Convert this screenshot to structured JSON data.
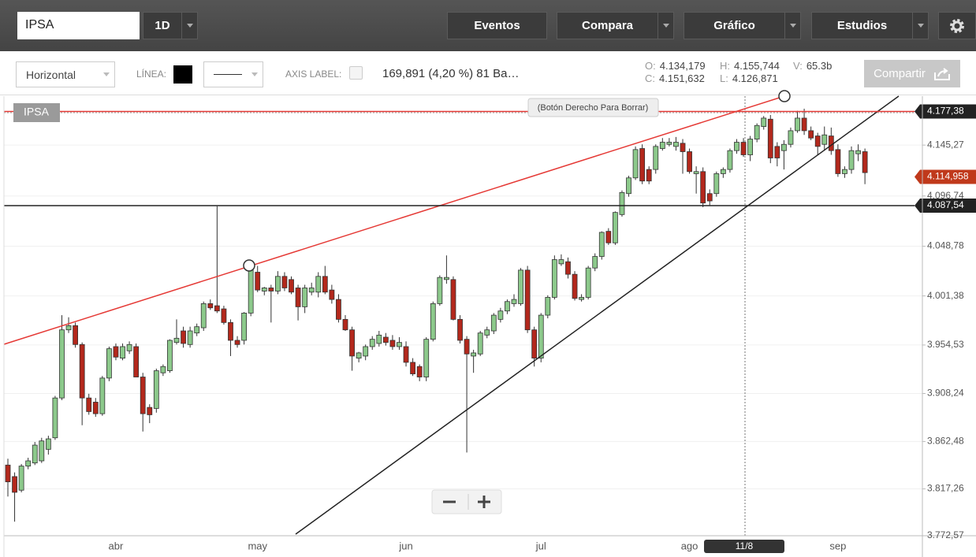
{
  "toolbar": {
    "symbol": "IPSA",
    "interval": "1D",
    "buttons": [
      "Eventos",
      "Compara",
      "Gráfico",
      "Estudios"
    ]
  },
  "drawing_bar": {
    "orientation": "Horizontal",
    "line_label": "LÍNEA:",
    "axis_label": "AXIS LABEL:",
    "change": "169,891 (4,20 %) 81 Ba…",
    "share": "Compartir"
  },
  "quote": [
    {
      "label": "O:",
      "value": "4.134,179"
    },
    {
      "label": "H:",
      "value": "4.155,744"
    },
    {
      "label": "V:",
      "value": "65.3b"
    },
    {
      "label": "C:",
      "value": "4.151,632"
    },
    {
      "label": "L:",
      "value": "4.126,871"
    }
  ],
  "chart_data": {
    "type": "candlestick",
    "title": "IPSA",
    "hint": "(Botón Derecho Para Borrar)",
    "crosshair_label": "11/8",
    "up_color": "#8cc98b",
    "down_color": "#b3281c",
    "ylim": [
      3772.57,
      4192
    ],
    "yticks": [
      {
        "value": 3772.57,
        "label": "3.772,57"
      },
      {
        "value": 3817.26,
        "label": "3.817,26"
      },
      {
        "value": 3862.48,
        "label": "3.862,48"
      },
      {
        "value": 3908.24,
        "label": "3.908,24"
      },
      {
        "value": 3954.53,
        "label": "3.954,53"
      },
      {
        "value": 4001.38,
        "label": "4.001,38"
      },
      {
        "value": 4048.78,
        "label": "4.048,78"
      },
      {
        "value": 4096.74,
        "label": "4.096,74"
      },
      {
        "value": 4145.27,
        "label": "4.145,27"
      }
    ],
    "grid": true,
    "hlines": [
      {
        "value": 4177.38,
        "label": "4.177,38",
        "color": "#e53935"
      },
      {
        "value": 4087.54,
        "label": "4.087,54",
        "color": "#222222"
      }
    ],
    "last_price": {
      "value": 4114.958,
      "label": "4.114,958",
      "color": "#c0391b"
    },
    "categories": [
      null,
      null,
      null,
      null,
      null,
      null,
      null,
      null,
      null,
      null,
      null,
      null,
      null,
      null,
      null,
      null,
      "abr",
      null,
      null,
      null,
      null,
      null,
      null,
      null,
      null,
      null,
      null,
      null,
      null,
      null,
      null,
      null,
      null,
      null,
      null,
      null,
      null,
      "may",
      null,
      null,
      null,
      null,
      null,
      null,
      null,
      null,
      null,
      null,
      null,
      null,
      null,
      null,
      null,
      null,
      null,
      null,
      null,
      null,
      null,
      "jun",
      null,
      null,
      null,
      null,
      null,
      null,
      null,
      null,
      null,
      null,
      null,
      null,
      null,
      null,
      null,
      null,
      null,
      null,
      null,
      "jul",
      null,
      null,
      null,
      null,
      null,
      null,
      null,
      null,
      null,
      null,
      null,
      null,
      null,
      null,
      null,
      null,
      null,
      null,
      null,
      null,
      null,
      "ago",
      null,
      null,
      null,
      null,
      null,
      null,
      null,
      null,
      null,
      null,
      null,
      null,
      null,
      null,
      null,
      null,
      null,
      null,
      null,
      null,
      null,
      "sep",
      null,
      null,
      null,
      null
    ],
    "open": [
      3840,
      3829,
      3816,
      3839,
      3842,
      3844,
      3855,
      3866,
      3904,
      3969,
      3973,
      3955,
      3904,
      3900,
      3889,
      3923,
      3953,
      3942,
      3949,
      3953,
      3924,
      3895,
      3894,
      3928,
      3930,
      3957,
      3968,
      3955,
      3966,
      3971,
      3994,
      3992,
      3989,
      3976,
      3959,
      3959,
      3985,
      4024,
      4006,
      4009,
      4006,
      4020,
      4017,
      4009,
      3991,
      4005,
      4005,
      4020,
      4007,
      3998,
      3979,
      3969,
      3942,
      3944,
      3953,
      3956,
      3962,
      3959,
      3953,
      3953,
      3938,
      3934,
      3924,
      3960,
      3994,
      4017,
      4017,
      3979,
      3960,
      3944,
      3946,
      3964,
      3968,
      3979,
      3987,
      3994,
      3994,
      4026,
      3969,
      3942,
      3983,
      4000,
      4032,
      4034,
      4022,
      3998,
      4000,
      4028,
      4039,
      4063,
      4052,
      4079,
      4099,
      4114,
      4142,
      4122,
      4122,
      4142,
      4146,
      4144,
      4147,
      4139,
      4118,
      4120,
      4099,
      4099,
      4118,
      4122,
      4140,
      4148,
      4136,
      4151,
      4163,
      4170,
      4144,
      4140,
      4146,
      4159,
      4171,
      4159,
      4154,
      4146,
      4154,
      4141,
      4118,
      4122,
      4137,
      4139
    ],
    "high": [
      3846,
      3833,
      3841,
      3847,
      3862,
      3866,
      3868,
      3906,
      3983,
      3981,
      3976,
      3957,
      3908,
      3904,
      3925,
      3953,
      3956,
      3956,
      3958,
      3956,
      3928,
      3898,
      3932,
      3936,
      3960,
      3979,
      3972,
      3972,
      3975,
      3996,
      3998,
      4087,
      3992,
      3979,
      3963,
      3986,
      4030,
      4030,
      4010,
      4012,
      4025,
      4024,
      4020,
      4012,
      4012,
      4014,
      4024,
      4030,
      4012,
      4003,
      3983,
      3972,
      3948,
      3955,
      3963,
      3968,
      3966,
      3964,
      3962,
      3958,
      3942,
      3936,
      3962,
      3996,
      4021,
      4040,
      4020,
      3983,
      3963,
      3950,
      3968,
      3972,
      3985,
      3990,
      3998,
      4003,
      4028,
      4030,
      3972,
      3985,
      4002,
      4040,
      4041,
      4038,
      4025,
      4003,
      4030,
      4042,
      4063,
      4066,
      4082,
      4102,
      4116,
      4144,
      4146,
      4125,
      4146,
      4152,
      4152,
      4153,
      4151,
      4142,
      4125,
      4124,
      4103,
      4120,
      4124,
      4142,
      4151,
      4152,
      4154,
      4166,
      4173,
      4174,
      4148,
      4150,
      4162,
      4178,
      4180,
      4163,
      4157,
      4163,
      4162,
      4146,
      4125,
      4144,
      4146,
      4142
    ],
    "low": [
      3810,
      3786,
      3814,
      3836,
      3840,
      3842,
      3850,
      3864,
      3902,
      3966,
      3952,
      3878,
      3888,
      3886,
      3887,
      3920,
      3940,
      3940,
      3946,
      3924,
      3872,
      3880,
      3890,
      3925,
      3928,
      3955,
      3952,
      3952,
      3963,
      3968,
      3988,
      3985,
      3974,
      3944,
      3952,
      3955,
      3982,
      4005,
      4002,
      3976,
      4003,
      4006,
      4003,
      3978,
      3985,
      4002,
      4000,
      4003,
      3994,
      3976,
      3968,
      3930,
      3938,
      3940,
      3950,
      3953,
      3954,
      3950,
      3950,
      3934,
      3925,
      3920,
      3920,
      3958,
      3992,
      4013,
      3978,
      3956,
      3852,
      3928,
      3944,
      3961,
      3965,
      3976,
      3984,
      3991,
      3992,
      3966,
      3934,
      3938,
      3980,
      3998,
      4030,
      4018,
      3997,
      3996,
      3998,
      4025,
      4036,
      4050,
      4050,
      4077,
      4096,
      4112,
      4108,
      4108,
      4118,
      4140,
      4144,
      4140,
      4118,
      4118,
      4099,
      4086,
      4088,
      4096,
      4114,
      4119,
      4137,
      4134,
      4130,
      4148,
      4160,
      4128,
      4125,
      4122,
      4143,
      4157,
      4155,
      4150,
      4136,
      4140,
      4136,
      4115,
      4114,
      4118,
      4130,
      4108
    ],
    "close": [
      3824,
      3814,
      3839,
      3844,
      3859,
      3863,
      3865,
      3904,
      3969,
      3973,
      3955,
      3904,
      3891,
      3889,
      3923,
      3951,
      3943,
      3953,
      3955,
      3924,
      3889,
      3888,
      3930,
      3934,
      3959,
      3961,
      3956,
      3968,
      3972,
      3994,
      3990,
      3987,
      3976,
      3959,
      3955,
      3985,
      4028,
      4007,
      4009,
      4006,
      4020,
      4009,
      4005,
      3991,
      4009,
      4009,
      4020,
      4005,
      3998,
      3979,
      3969,
      3944,
      3947,
      3953,
      3960,
      3964,
      3957,
      3953,
      3957,
      3938,
      3927,
      3924,
      3960,
      3994,
      4019,
      4019,
      3979,
      3959,
      3946,
      3947,
      3966,
      3969,
      3983,
      3987,
      3996,
      3998,
      4026,
      3969,
      3942,
      3983,
      4000,
      4036,
      4036,
      4022,
      3999,
      4000,
      4028,
      4039,
      4062,
      4052,
      4081,
      4100,
      4114,
      4141,
      4111,
      4111,
      4144,
      4148,
      4148,
      4148,
      4139,
      4120,
      4120,
      4090,
      4092,
      4118,
      4122,
      4140,
      4148,
      4136,
      4151,
      4164,
      4171,
      4133,
      4133,
      4146,
      4159,
      4171,
      4159,
      4152,
      4144,
      4155,
      4140,
      4118,
      4122,
      4140,
      4140,
      4119
    ]
  }
}
